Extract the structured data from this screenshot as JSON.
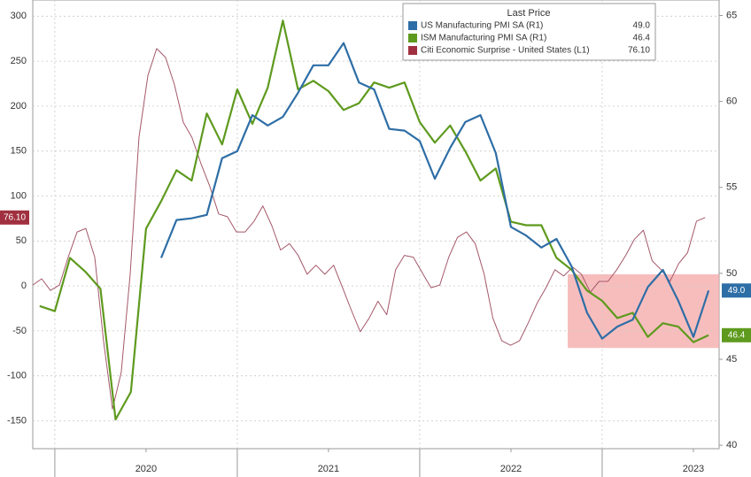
{
  "chart_data": {
    "type": "line",
    "legend_title": "Last Price",
    "xlim": [
      2019.879,
      2023.641
    ],
    "xticks": [
      {
        "value": 2020.5,
        "label": "2020"
      },
      {
        "value": 2021.5,
        "label": "2021"
      },
      {
        "value": 2022.5,
        "label": "2022"
      },
      {
        "value": 2023.5,
        "label": "2023"
      }
    ],
    "ylim": [
      -181,
      318
    ],
    "yticks": [
      -150,
      -100,
      -50,
      0,
      50,
      100,
      150,
      200,
      250,
      300
    ],
    "y2lim": [
      39.8,
      65.9
    ],
    "y2ticks": [
      40,
      45,
      50,
      55,
      60,
      65
    ],
    "grid": true,
    "highlight_box": {
      "x": [
        2022.811,
        2023.641
      ],
      "y": [
        -69,
        13
      ]
    },
    "series": [
      {
        "name": "US Manufacturing PMI SA  (R1)",
        "color": "#2e6ea6",
        "axis": "y2",
        "last_price": "49.0",
        "x": [
          2020.583,
          2020.667,
          2020.75,
          2020.833,
          2020.917,
          2021.0,
          2021.083,
          2021.167,
          2021.25,
          2021.333,
          2021.417,
          2021.5,
          2021.583,
          2021.667,
          2021.75,
          2021.833,
          2021.917,
          2022.0,
          2022.083,
          2022.167,
          2022.25,
          2022.333,
          2022.417,
          2022.5,
          2022.583,
          2022.667,
          2022.75,
          2022.833,
          2022.917,
          2023.0,
          2023.083,
          2023.167,
          2023.25,
          2023.333,
          2023.417,
          2023.5,
          2023.583
        ],
        "values": [
          50.9,
          53.1,
          53.2,
          53.4,
          56.7,
          57.1,
          59.2,
          58.6,
          59.1,
          60.5,
          62.1,
          62.1,
          63.4,
          61.1,
          60.7,
          58.4,
          58.3,
          57.7,
          55.5,
          57.3,
          58.8,
          59.2,
          57.0,
          52.7,
          52.2,
          51.5,
          52.0,
          50.4,
          47.7,
          46.2,
          46.9,
          47.3,
          49.2,
          50.2,
          48.4,
          46.3,
          49.0
        ]
      },
      {
        "name": "ISM Manufacturing PMI SA  (R1)",
        "color": "#5e9a1e",
        "axis": "y2",
        "last_price": "46.4",
        "x": [
          2019.917,
          2020.0,
          2020.083,
          2020.167,
          2020.25,
          2020.333,
          2020.417,
          2020.5,
          2020.583,
          2020.667,
          2020.75,
          2020.833,
          2020.917,
          2021.0,
          2021.083,
          2021.167,
          2021.25,
          2021.333,
          2021.417,
          2021.5,
          2021.583,
          2021.667,
          2021.75,
          2021.833,
          2021.917,
          2022.0,
          2022.083,
          2022.167,
          2022.25,
          2022.333,
          2022.417,
          2022.5,
          2022.583,
          2022.667,
          2022.75,
          2022.833,
          2022.917,
          2023.0,
          2023.083,
          2023.167,
          2023.25,
          2023.333,
          2023.417,
          2023.5,
          2023.583
        ],
        "values": [
          48.1,
          47.8,
          50.9,
          50.1,
          49.1,
          41.5,
          43.1,
          52.6,
          54.2,
          56.0,
          55.4,
          59.3,
          57.5,
          60.7,
          58.7,
          60.8,
          64.7,
          60.7,
          61.2,
          60.6,
          59.5,
          59.9,
          61.1,
          60.8,
          61.1,
          58.8,
          57.6,
          58.6,
          57.1,
          55.4,
          56.1,
          53.0,
          52.8,
          52.8,
          50.9,
          50.2,
          49.0,
          48.4,
          47.4,
          47.7,
          46.3,
          47.1,
          46.9,
          46.0,
          46.4
        ]
      },
      {
        "name": "Citi Economic Surprise - United States  (L1)",
        "color": "#a0303f",
        "line_color": "#a4586a",
        "axis": "y",
        "last_price": "76.10",
        "x": [
          2019.879,
          2019.928,
          2019.976,
          2020.025,
          2020.073,
          2020.122,
          2020.17,
          2020.219,
          2020.267,
          2020.316,
          2020.364,
          2020.413,
          2020.461,
          2020.51,
          2020.558,
          2020.607,
          2020.655,
          2020.704,
          2020.752,
          2020.801,
          2020.849,
          2020.898,
          2020.946,
          2020.995,
          2021.043,
          2021.092,
          2021.14,
          2021.189,
          2021.237,
          2021.286,
          2021.334,
          2021.383,
          2021.431,
          2021.48,
          2021.528,
          2021.577,
          2021.625,
          2021.674,
          2021.722,
          2021.771,
          2021.819,
          2021.868,
          2021.916,
          2021.965,
          2022.013,
          2022.062,
          2022.11,
          2022.159,
          2022.207,
          2022.256,
          2022.304,
          2022.353,
          2022.401,
          2022.45,
          2022.498,
          2022.547,
          2022.595,
          2022.644,
          2022.692,
          2022.741,
          2022.789,
          2022.838,
          2022.886,
          2022.935,
          2022.983,
          2023.032,
          2023.08,
          2023.129,
          2023.177,
          2023.226,
          2023.274,
          2023.323,
          2023.371,
          2023.42,
          2023.468,
          2023.517,
          2023.565
        ],
        "values": [
          1,
          8,
          -5,
          1,
          32,
          60,
          64,
          32,
          -61,
          -137,
          -96,
          13,
          165,
          234,
          264,
          254,
          224,
          182,
          165,
          136,
          111,
          80,
          77,
          60,
          60,
          72,
          89,
          67,
          40,
          47,
          34,
          13,
          23,
          13,
          23,
          -2,
          -27,
          -51,
          -36,
          -17,
          -32,
          18,
          34,
          32,
          15,
          -2,
          1,
          32,
          54,
          60,
          47,
          13,
          -36,
          -61,
          -66,
          -61,
          -41,
          -19,
          -2,
          18,
          11,
          21,
          13,
          -7,
          5,
          5,
          18,
          34,
          52,
          62,
          28,
          18,
          5,
          25,
          37,
          72,
          76.1
        ]
      }
    ]
  }
}
